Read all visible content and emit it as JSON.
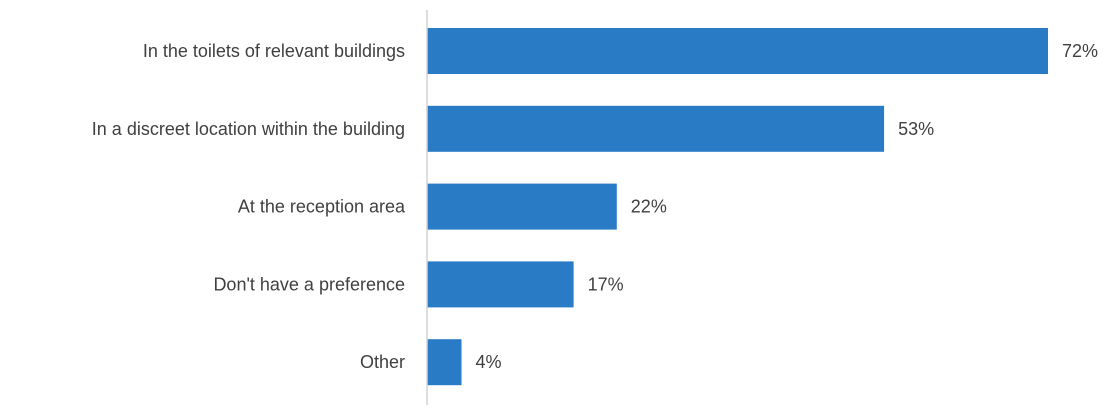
{
  "chart_data": {
    "type": "bar",
    "orientation": "horizontal",
    "title": "",
    "xlabel": "",
    "ylabel": "",
    "categories": [
      "In the toilets of relevant buildings",
      "In a discreet location within the building",
      "At the reception area",
      "Don't have a preference",
      "Other"
    ],
    "values": [
      72,
      53,
      22,
      17,
      4
    ],
    "value_labels": [
      "72%",
      "53%",
      "22%",
      "17%",
      "4%"
    ],
    "unit": "%",
    "xlim": [
      0,
      80
    ],
    "grid": false,
    "legend": "none",
    "bar_color": "#2A7BC5",
    "axis_color": "#D4D4D4",
    "label_color": "#404040"
  }
}
